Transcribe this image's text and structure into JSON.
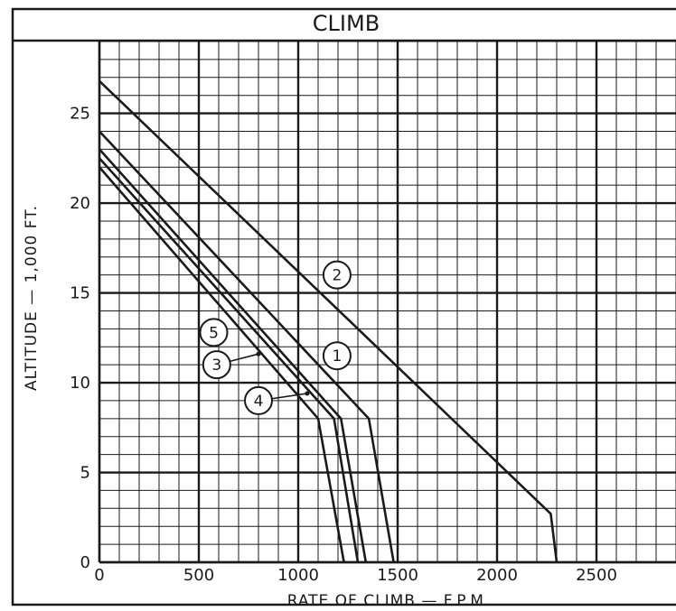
{
  "chart_data": {
    "type": "line",
    "title": "CLIMB",
    "xlabel": "RATE OF CLIMB — F.P.M.",
    "ylabel": "ALTITUDE — 1,000 FT.",
    "xlim": [
      0,
      2900
    ],
    "ylim": [
      0,
      29
    ],
    "x_ticks": [
      0,
      500,
      1000,
      1500,
      2000,
      2500
    ],
    "x_tick_labels": [
      "0",
      "500",
      "1000",
      "1500",
      "2000",
      "2500"
    ],
    "y_ticks": [
      0,
      5,
      10,
      15,
      20,
      25
    ],
    "y_tick_labels": [
      "0",
      "5",
      "10",
      "15",
      "20",
      "25"
    ],
    "grid": true,
    "line_color": "#1a1a1a",
    "series": [
      {
        "name": "1",
        "x": [
          0,
          1215,
          1340
        ],
        "y": [
          23.0,
          8.0,
          0
        ]
      },
      {
        "name": "2",
        "x": [
          0,
          2270,
          2300
        ],
        "y": [
          26.8,
          2.7,
          0
        ]
      },
      {
        "name": "3",
        "x": [
          0,
          1100,
          1230
        ],
        "y": [
          22.0,
          8.0,
          0
        ]
      },
      {
        "name": "4",
        "x": [
          0,
          1180,
          1300
        ],
        "y": [
          22.5,
          8.0,
          0
        ]
      },
      {
        "name": "5",
        "x": [
          0,
          1355,
          1480
        ],
        "y": [
          24.0,
          8.0,
          0
        ]
      }
    ],
    "annotations": [
      {
        "label": "2",
        "x": 1195,
        "y": 16.0,
        "target_x": 1195,
        "target_y": 16.0
      },
      {
        "label": "1",
        "x": 1195,
        "y": 11.5,
        "target_x": 1195,
        "target_y": 11.5
      },
      {
        "label": "5",
        "x": 575,
        "y": 12.8,
        "target_x": 575,
        "target_y": 12.8
      },
      {
        "label": "3",
        "x": 590,
        "y": 11.0,
        "target_x": 800,
        "target_y": 11.6
      },
      {
        "label": "4",
        "x": 800,
        "y": 9.0,
        "target_x": 1045,
        "target_y": 9.4
      }
    ]
  }
}
